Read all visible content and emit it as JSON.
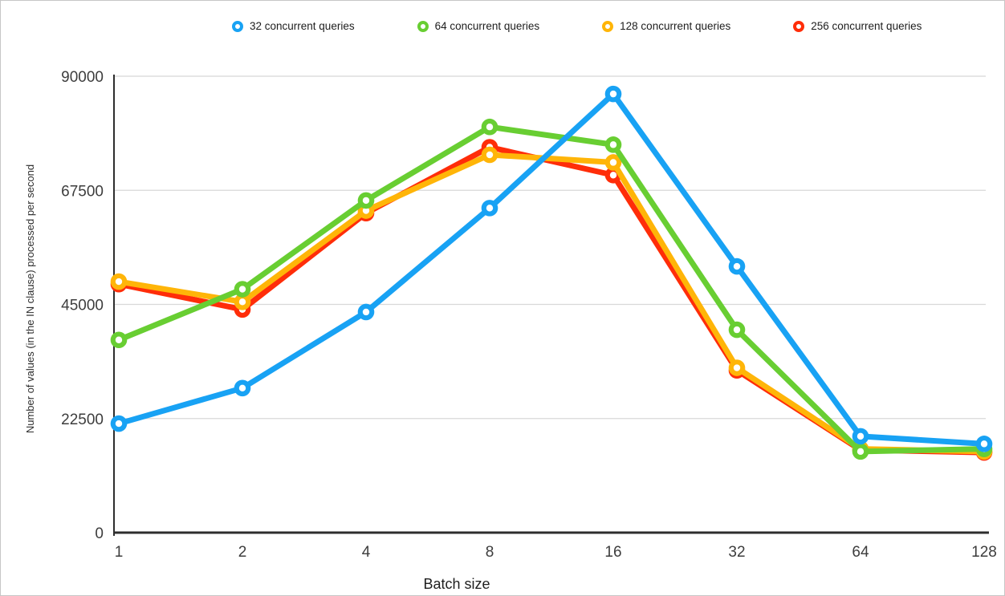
{
  "chart_data": {
    "type": "line",
    "title": "",
    "xlabel": "Batch size",
    "ylabel": "Number of values (in the IN clause) processed per second",
    "categories": [
      "1",
      "2",
      "4",
      "8",
      "16",
      "32",
      "64",
      "128"
    ],
    "y_ticks": [
      0,
      22500,
      45000,
      67500,
      90000
    ],
    "ylim": [
      0,
      90000
    ],
    "grid": true,
    "legend_position": "top",
    "marker_style": "ring",
    "series": [
      {
        "name": "32 concurrent queries",
        "color": "#18A2F4",
        "values": [
          21500,
          28500,
          43500,
          64000,
          86500,
          52500,
          19000,
          17500
        ]
      },
      {
        "name": "64 concurrent queries",
        "color": "#68CE32",
        "values": [
          38000,
          48000,
          65500,
          80000,
          76500,
          40000,
          16000,
          16500
        ]
      },
      {
        "name": "128 concurrent queries",
        "color": "#FFB508",
        "values": [
          49500,
          45500,
          63500,
          74500,
          73000,
          32500,
          16500,
          16000
        ]
      },
      {
        "name": "256 concurrent queries",
        "color": "#FF2D09",
        "values": [
          49000,
          44000,
          63000,
          76000,
          70500,
          32000,
          16300,
          15800
        ]
      }
    ],
    "axis_colors": {
      "grid": "#d8d8d8",
      "axis_line": "#2e2e2e",
      "tick_text": "#3d3d3d"
    }
  }
}
